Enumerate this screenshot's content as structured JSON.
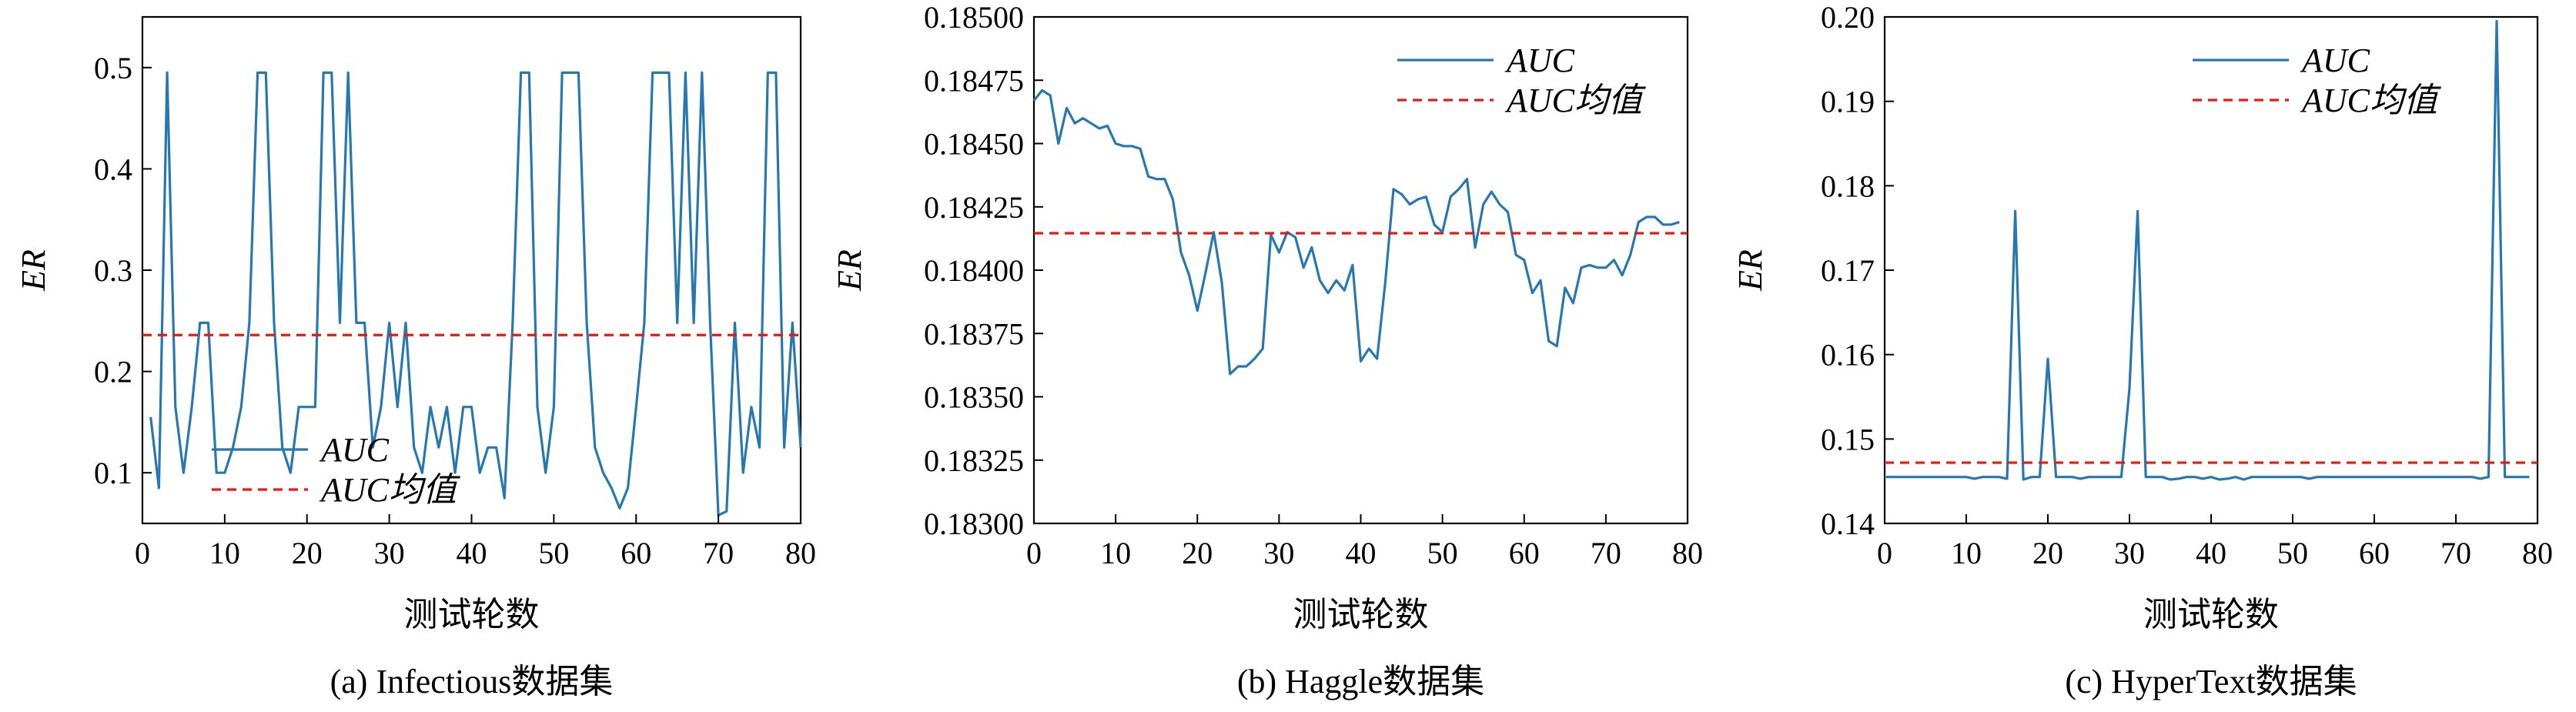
{
  "figure": {
    "series_labels": {
      "auc": "AUC",
      "mean": "AUC均值"
    },
    "colors": {
      "line": "#2878b0",
      "mean": "#e8190f",
      "axis": "#000000"
    }
  },
  "chart_data": [
    {
      "type": "line",
      "caption": "(a)  Infectious数据集",
      "xlabel": "测试轮数",
      "ylabel": "ER",
      "xlim": [
        0,
        80
      ],
      "ylim": [
        0.05,
        0.55
      ],
      "xticks": [
        0,
        10,
        20,
        30,
        40,
        50,
        60,
        70,
        80
      ],
      "yticks": [
        0.1,
        0.2,
        0.3,
        0.4,
        0.5
      ],
      "ytick_labels": [
        "0.1",
        "0.2",
        "0.3",
        "0.4",
        "0.5"
      ],
      "legend_loc": "lower-left",
      "x_start": 1,
      "mean": 0.236,
      "series": [
        {
          "name": "AUC",
          "values": [
            0.155,
            0.085,
            0.495,
            0.165,
            0.1,
            0.165,
            0.248,
            0.248,
            0.1,
            0.1,
            0.125,
            0.165,
            0.248,
            0.495,
            0.495,
            0.248,
            0.125,
            0.1,
            0.165,
            0.165,
            0.165,
            0.495,
            0.495,
            0.248,
            0.495,
            0.248,
            0.248,
            0.125,
            0.165,
            0.248,
            0.165,
            0.248,
            0.125,
            0.1,
            0.165,
            0.125,
            0.165,
            0.1,
            0.165,
            0.165,
            0.1,
            0.125,
            0.125,
            0.075,
            0.248,
            0.495,
            0.495,
            0.165,
            0.1,
            0.165,
            0.495,
            0.495,
            0.495,
            0.248,
            0.125,
            0.1,
            0.085,
            0.065,
            0.085,
            0.165,
            0.248,
            0.495,
            0.495,
            0.495,
            0.248,
            0.495,
            0.248,
            0.495,
            0.248,
            0.058,
            0.062,
            0.248,
            0.1,
            0.165,
            0.125,
            0.495,
            0.495,
            0.125,
            0.248,
            0.125
          ]
        }
      ]
    },
    {
      "type": "line",
      "caption": "(b)  Haggle数据集",
      "xlabel": "测试轮数",
      "ylabel": "ER",
      "xlim": [
        0,
        80
      ],
      "ylim": [
        0.183,
        0.185
      ],
      "xticks": [
        0,
        10,
        20,
        30,
        40,
        50,
        60,
        70,
        80
      ],
      "yticks": [
        0.183,
        0.18325,
        0.1835,
        0.18375,
        0.184,
        0.18425,
        0.1845,
        0.18475,
        0.185
      ],
      "ytick_labels": [
        "0.18300",
        "0.18325",
        "0.18350",
        "0.18375",
        "0.18400",
        "0.18425",
        "0.18450",
        "0.18475",
        "0.18500"
      ],
      "legend_loc": "upper-right",
      "x_start": 0,
      "mean": 0.184146,
      "series": [
        {
          "name": "AUC",
          "values": [
            0.18467,
            0.18471,
            0.18469,
            0.1845,
            0.18464,
            0.18458,
            0.1846,
            0.18458,
            0.18456,
            0.18457,
            0.1845,
            0.18449,
            0.18449,
            0.18448,
            0.18437,
            0.18436,
            0.18436,
            0.18428,
            0.18407,
            0.18398,
            0.18384,
            0.18399,
            0.18415,
            0.18395,
            0.18359,
            0.18362,
            0.18362,
            0.18365,
            0.18369,
            0.18414,
            0.18407,
            0.18415,
            0.18413,
            0.18401,
            0.18409,
            0.18396,
            0.18391,
            0.18396,
            0.18392,
            0.18402,
            0.18364,
            0.18369,
            0.18365,
            0.18395,
            0.18432,
            0.1843,
            0.18426,
            0.18428,
            0.18429,
            0.18418,
            0.18415,
            0.18429,
            0.18432,
            0.18436,
            0.18409,
            0.18426,
            0.18431,
            0.18426,
            0.18423,
            0.18406,
            0.18404,
            0.18391,
            0.18396,
            0.18372,
            0.1837,
            0.18393,
            0.18387,
            0.18401,
            0.18402,
            0.18401,
            0.18401,
            0.18404,
            0.18398,
            0.18406,
            0.18419,
            0.18421,
            0.18421,
            0.18418,
            0.18418,
            0.18419
          ]
        }
      ]
    },
    {
      "type": "line",
      "caption": "(c)  HyperText数据集",
      "xlabel": "测试轮数",
      "ylabel": "ER",
      "xlim": [
        0,
        80
      ],
      "ylim": [
        0.14,
        0.2
      ],
      "xticks": [
        0,
        10,
        20,
        30,
        40,
        50,
        60,
        70,
        80
      ],
      "yticks": [
        0.14,
        0.15,
        0.16,
        0.17,
        0.18,
        0.19,
        0.2
      ],
      "ytick_labels": [
        "0.14",
        "0.15",
        "0.16",
        "0.17",
        "0.18",
        "0.19",
        "0.20"
      ],
      "legend_loc": "upper-center",
      "x_start": 0,
      "mean": 0.1472,
      "series": [
        {
          "name": "AUC",
          "values": [
            0.1455,
            0.1455,
            0.1455,
            0.1455,
            0.1455,
            0.1455,
            0.1455,
            0.1455,
            0.1455,
            0.1455,
            0.1455,
            0.1453,
            0.1455,
            0.1455,
            0.1455,
            0.1453,
            0.177,
            0.1452,
            0.1455,
            0.1455,
            0.1595,
            0.1455,
            0.1455,
            0.1455,
            0.1453,
            0.1455,
            0.1455,
            0.1455,
            0.1455,
            0.1455,
            0.156,
            0.177,
            0.1455,
            0.1455,
            0.1455,
            0.1452,
            0.1453,
            0.1455,
            0.1455,
            0.1453,
            0.1455,
            0.1452,
            0.1453,
            0.1455,
            0.1452,
            0.1455,
            0.1455,
            0.1455,
            0.1455,
            0.1455,
            0.1455,
            0.1455,
            0.1453,
            0.1455,
            0.1455,
            0.1455,
            0.1455,
            0.1455,
            0.1455,
            0.1455,
            0.1455,
            0.1455,
            0.1455,
            0.1455,
            0.1455,
            0.1455,
            0.1455,
            0.1455,
            0.1455,
            0.1455,
            0.1455,
            0.1455,
            0.1455,
            0.1453,
            0.1455,
            0.1995,
            0.1455,
            0.1455,
            0.1455,
            0.1455
          ]
        }
      ]
    }
  ]
}
